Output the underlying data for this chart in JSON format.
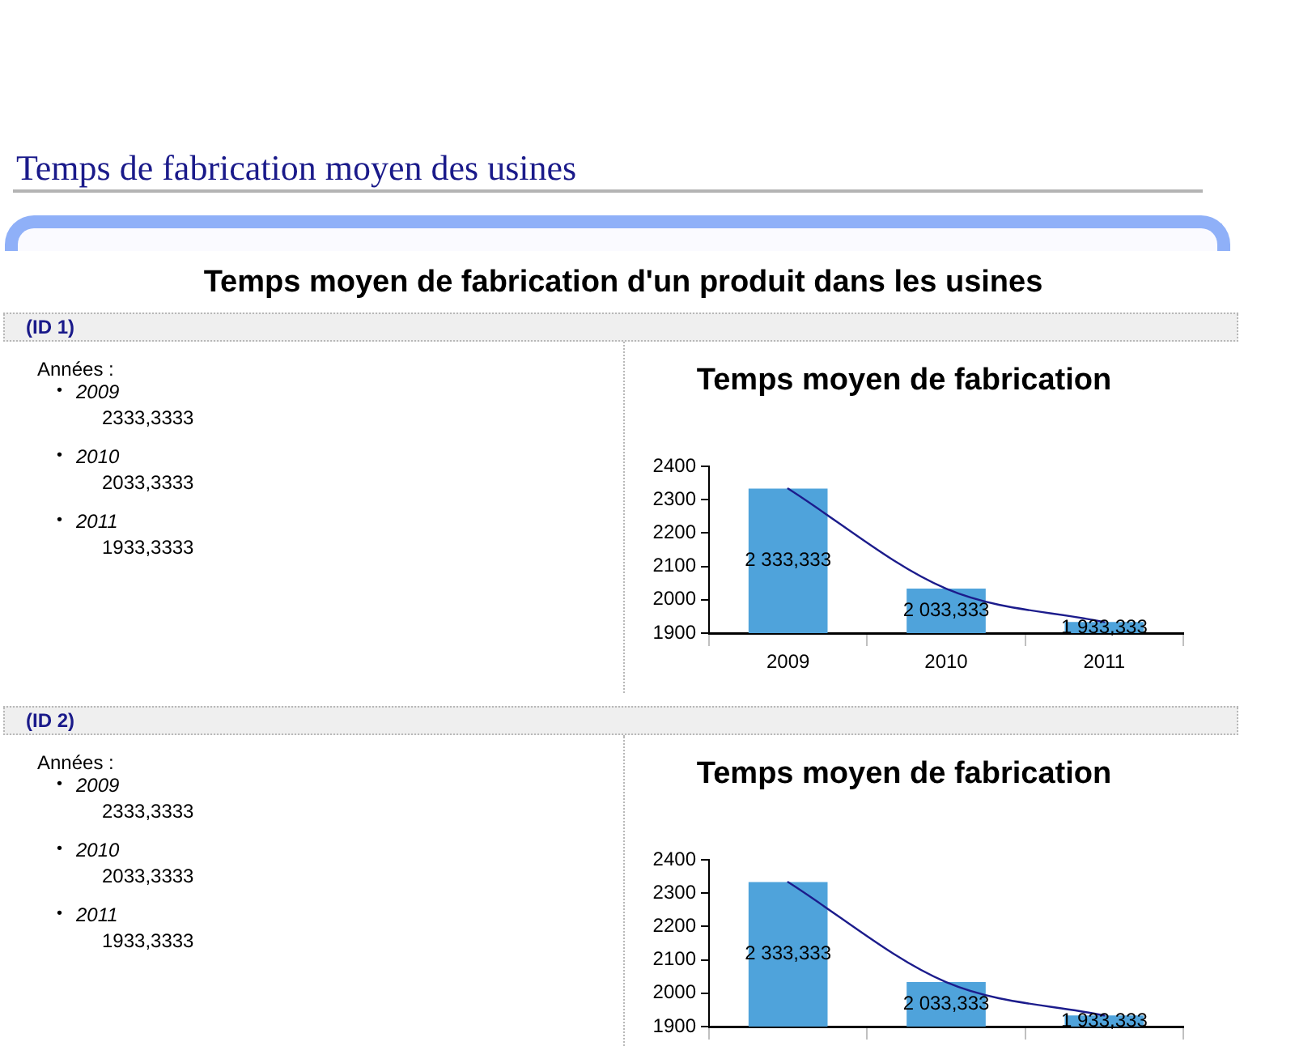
{
  "chart_data": [
    {
      "type": "other",
      "title": "Temps de fabrication moyen des usines",
      "subtitle": "Temps moyen de fabrication d'un produit dans les usines"
    },
    {
      "type": "other",
      "title": "(ID 1)",
      "annotations": [
        "Années :",
        "•",
        "2009",
        "2333,3333",
        "•",
        "2010",
        "2033,3333",
        "•",
        "2011",
        "1933,3333"
      ]
    },
    {
      "type": "bar",
      "title": "Temps moyen de fabrication",
      "categories": [
        "2009",
        "2010",
        "2011"
      ],
      "series": [
        {
          "type": "bar",
          "color": "#4fa3db",
          "values": [
            2333.333,
            2033.333,
            1933.333
          ],
          "value_labels": [
            "2 333,333",
            "2 033,333",
            "1 933,333"
          ]
        },
        {
          "type": "line",
          "color": "#1c1c8c",
          "values": [
            2333,
            2033,
            1933
          ]
        }
      ],
      "ylim": [
        1900,
        2400
      ],
      "yticks": [
        1900,
        2000,
        2100,
        2200,
        2300,
        2400
      ],
      "grid": false,
      "legend": false
    },
    {
      "type": "other",
      "title": "(ID 2)",
      "annotations": [
        "Années :",
        "•",
        "2009",
        "2333,3333",
        "•",
        "2010",
        "2033,3333",
        "•",
        "2011",
        "1933,3333"
      ]
    },
    {
      "type": "bar",
      "title": "Temps moyen de fabrication",
      "categories": [
        null,
        null,
        null
      ],
      "series": [
        {
          "type": "bar",
          "color": "#4fa3db",
          "values": [
            2333.333,
            2033.333,
            1933.333
          ],
          "value_labels": [
            "2 333,333",
            "2 033,333",
            "1 933,333"
          ]
        },
        {
          "type": "line",
          "color": "#1c1c8c",
          "values": [
            2333,
            2033,
            1933
          ]
        }
      ],
      "ylim": [
        1900,
        2400
      ],
      "yticks": [
        1900,
        2000,
        2100,
        2200,
        2300,
        2400
      ],
      "grid": false,
      "legend": false
    }
  ]
}
